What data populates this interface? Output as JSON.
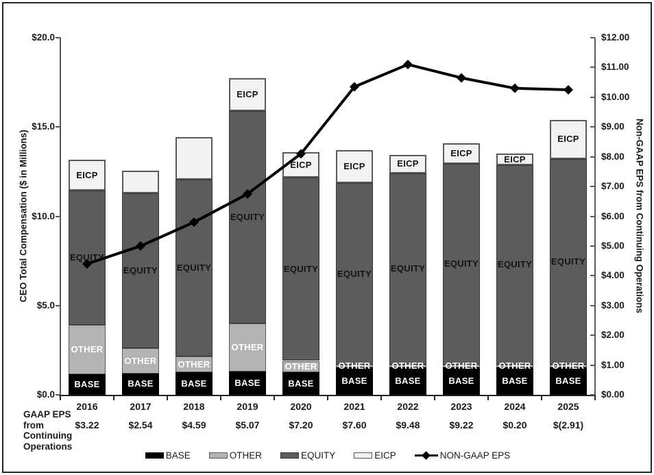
{
  "chart_data": {
    "type": "bar",
    "subtype": "stacked-bars-with-line",
    "categories": [
      "2016",
      "2017",
      "2018",
      "2019",
      "2020",
      "2021",
      "2022",
      "2023",
      "2024",
      "2025"
    ],
    "bar_series": [
      {
        "name": "BASE",
        "fill": "#000000",
        "border": "#000000",
        "border_width": 1,
        "label_color": "#ffffff",
        "values": [
          1.15,
          1.2,
          1.25,
          1.3,
          1.25,
          1.55,
          1.55,
          1.55,
          1.55,
          1.55
        ],
        "labels_shown": [
          true,
          true,
          true,
          true,
          true,
          true,
          true,
          true,
          true,
          true
        ]
      },
      {
        "name": "OTHER",
        "fill": "#b3b3b3",
        "border": "#595959",
        "border_width": 1,
        "label_color": "#ffffff",
        "values": [
          2.75,
          1.4,
          0.9,
          2.7,
          0.65,
          0.15,
          0.15,
          0.15,
          0.15,
          0.15
        ],
        "labels_shown": [
          true,
          true,
          true,
          true,
          true,
          true,
          true,
          true,
          true,
          true
        ]
      },
      {
        "name": "EQUITY",
        "fill": "#5c5c5c",
        "border": "#333333",
        "border_width": 1,
        "label_color": "#141414",
        "values": [
          7.55,
          8.7,
          9.9,
          11.9,
          10.25,
          10.15,
          10.7,
          11.25,
          11.15,
          11.5
        ],
        "labels_shown": [
          true,
          true,
          true,
          true,
          true,
          true,
          true,
          true,
          true,
          true
        ]
      },
      {
        "name": "EICP",
        "fill": "#f2f2f2",
        "border": "#595959",
        "border_width": 2,
        "label_color": "#141414",
        "values": [
          1.7,
          1.25,
          2.4,
          1.85,
          1.45,
          1.85,
          1.05,
          1.15,
          0.65,
          2.2
        ],
        "labels_shown": [
          true,
          false,
          false,
          true,
          true,
          true,
          true,
          true,
          true,
          true
        ]
      }
    ],
    "line_series": {
      "name": "NON-GAAP EPS",
      "color": "#000000",
      "axis": "right",
      "values": [
        4.4,
        5.0,
        5.8,
        6.75,
        8.1,
        10.35,
        11.1,
        10.65,
        10.3,
        10.25
      ]
    },
    "left_axis": {
      "title": "CEO Total Compensation ($ in Millions)",
      "min": 0,
      "max": 20,
      "ticks": [
        {
          "value": 0,
          "label": "$0.0"
        },
        {
          "value": 5,
          "label": "$5.0"
        },
        {
          "value": 10,
          "label": "$10.0"
        },
        {
          "value": 15,
          "label": "$15.0"
        },
        {
          "value": 20,
          "label": "$20.0"
        }
      ]
    },
    "right_axis": {
      "title": "Non-GAAP EPS from Continuing Operations",
      "min": 0,
      "max": 12,
      "ticks": [
        {
          "value": 0,
          "label": "$0.00"
        },
        {
          "value": 1,
          "label": "$1.00"
        },
        {
          "value": 2,
          "label": "$2.00"
        },
        {
          "value": 3,
          "label": "$3.00"
        },
        {
          "value": 4,
          "label": "$4.00"
        },
        {
          "value": 5,
          "label": "$5.00"
        },
        {
          "value": 6,
          "label": "$6.00"
        },
        {
          "value": 7,
          "label": "$7.00"
        },
        {
          "value": 8,
          "label": "$8.00"
        },
        {
          "value": 9,
          "label": "$9.00"
        },
        {
          "value": 10,
          "label": "$10.00"
        },
        {
          "value": 11,
          "label": "$11.00"
        },
        {
          "value": 12,
          "label": "$12.00"
        }
      ]
    },
    "x_axis": {
      "row_header_lines": [
        "GAAP EPS",
        "from",
        "Continuing",
        "Operations"
      ],
      "gaap_eps_values": [
        "$3.22",
        "$2.54",
        "$4.59",
        "$5.07",
        "$7.20",
        "$7.60",
        "$9.48",
        "$9.22",
        "$0.20",
        "$(2.91)"
      ]
    },
    "legend": {
      "items": [
        {
          "label": "BASE",
          "swatch": "rect",
          "fill": "#000000",
          "border": "#000000"
        },
        {
          "label": "OTHER",
          "swatch": "rect",
          "fill": "#b3b3b3",
          "border": "#595959"
        },
        {
          "label": "EQUITY",
          "swatch": "rect",
          "fill": "#5c5c5c",
          "border": "#333333"
        },
        {
          "label": "EICP",
          "swatch": "rect",
          "fill": "#f2f2f2",
          "border": "#595959"
        },
        {
          "label": "NON-GAAP EPS",
          "swatch": "line",
          "color": "#000000"
        }
      ]
    }
  }
}
